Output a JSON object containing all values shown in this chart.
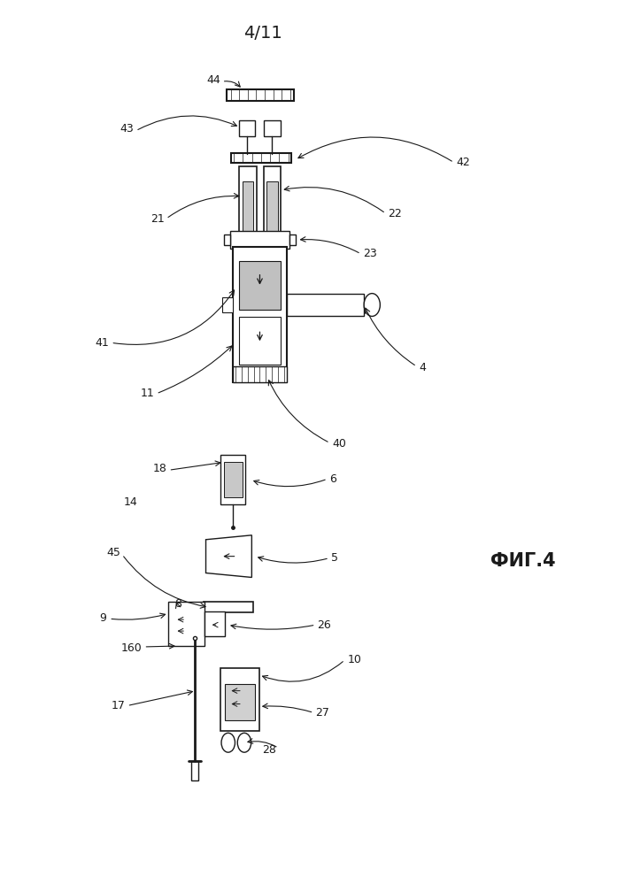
{
  "page_label": "4/11",
  "fig_label": "ФИГ.4",
  "bg_color": "#ffffff",
  "line_color": "#1a1a1a"
}
